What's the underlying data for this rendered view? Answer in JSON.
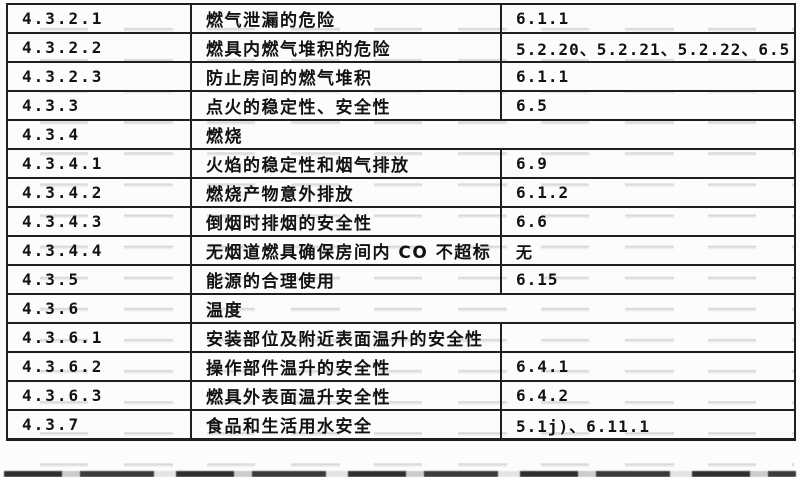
{
  "colors": {
    "paper": "#fcfcfa",
    "border": "#1f1f1f",
    "text": "#121212"
  },
  "table": {
    "rows": [
      {
        "clause": "4.3.2.1",
        "item": "燃气泄漏的危险",
        "ref": "6.1.1",
        "span": false
      },
      {
        "clause": "4.3.2.2",
        "item": "燃具内燃气堆积的危险",
        "ref": "5.2.20、5.2.21、5.2.22、6.5",
        "span": false
      },
      {
        "clause": "4.3.2.3",
        "item": "防止房间的燃气堆积",
        "ref": "6.1.1",
        "span": false
      },
      {
        "clause": "4.3.3",
        "item": "点火的稳定性、安全性",
        "ref": "6.5",
        "span": false
      },
      {
        "clause": "4.3.4",
        "item": "燃烧",
        "ref": "",
        "span": true
      },
      {
        "clause": "4.3.4.1",
        "item": "火焰的稳定性和烟气排放",
        "ref": "6.9",
        "span": false
      },
      {
        "clause": "4.3.4.2",
        "item": "燃烧产物意外排放",
        "ref": "6.1.2",
        "span": false
      },
      {
        "clause": "4.3.4.3",
        "item": "倒烟时排烟的安全性",
        "ref": "6.6",
        "span": false
      },
      {
        "clause": "4.3.4.4",
        "item": "无烟道燃具确保房间内 CO 不超标",
        "ref": "无",
        "span": false
      },
      {
        "clause": "4.3.5",
        "item": "能源的合理使用",
        "ref": "6.15",
        "span": false
      },
      {
        "clause": "4.3.6",
        "item": "温度",
        "ref": "",
        "span": true
      },
      {
        "clause": "4.3.6.1",
        "item": "安装部位及附近表面温升的安全性",
        "ref": "",
        "span": false
      },
      {
        "clause": "4.3.6.2",
        "item": "操作部件温升的安全性",
        "ref": "6.4.1",
        "span": false
      },
      {
        "clause": "4.3.6.3",
        "item": "燃具外表面温升安全性",
        "ref": "6.4.2",
        "span": false
      },
      {
        "clause": "4.3.7",
        "item": "食品和生活用水安全",
        "ref": "5.1j)、6.11.1",
        "span": false
      }
    ]
  }
}
